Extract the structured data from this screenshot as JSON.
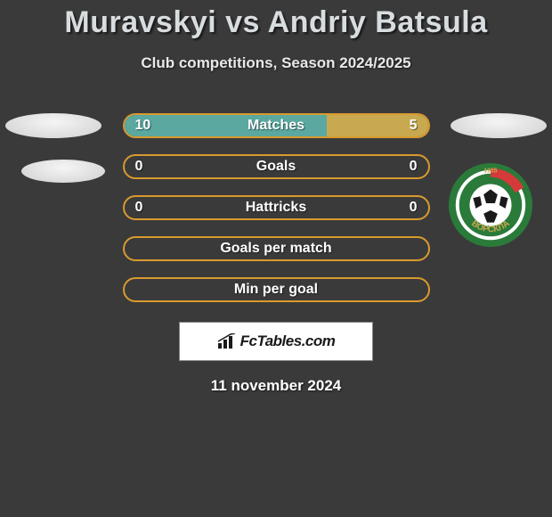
{
  "title": "Muravskyi vs Andriy Batsula",
  "subtitle": "Club competitions, Season 2024/2025",
  "date": "11 november 2024",
  "watermark": "FcTables.com",
  "colors": {
    "border_orange": "#d89a2e",
    "fill_teal": "#5aa8a0",
    "fill_gold": "#c9a94f",
    "background": "#3a3a3a"
  },
  "rows": [
    {
      "label": "Matches",
      "left": "10",
      "right": "5",
      "left_pct": 66.7,
      "right_pct": 33.3,
      "show_vals": true
    },
    {
      "label": "Goals",
      "left": "0",
      "right": "0",
      "left_pct": 0,
      "right_pct": 0,
      "show_vals": true
    },
    {
      "label": "Hattricks",
      "left": "0",
      "right": "0",
      "left_pct": 0,
      "right_pct": 0,
      "show_vals": true
    },
    {
      "label": "Goals per match",
      "left": "",
      "right": "",
      "left_pct": 0,
      "right_pct": 0,
      "show_vals": false
    },
    {
      "label": "Min per goal",
      "left": "",
      "right": "",
      "left_pct": 0,
      "right_pct": 0,
      "show_vals": false
    }
  ],
  "crest": {
    "name": "vorskla-crest",
    "ring_color": "#2a7a3a",
    "ring_inner": "#ffffff",
    "ball_white": "#ffffff",
    "ball_black": "#1a1a1a",
    "stripe": "#d43a3a",
    "year": "1955",
    "text": "ВОРСКЛА"
  }
}
